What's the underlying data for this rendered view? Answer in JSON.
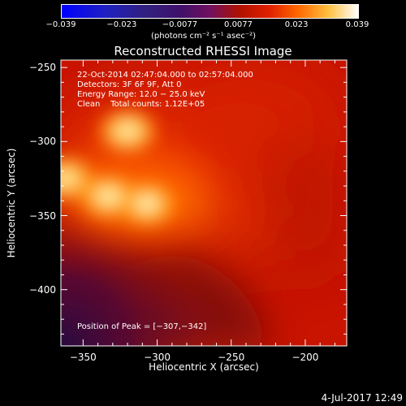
{
  "colorbar": {
    "ticks": [
      "−0.039",
      "−0.023",
      "−0.0077",
      "0.0077",
      "0.023",
      "0.039"
    ],
    "tick_values": [
      -0.039,
      -0.023,
      -0.0077,
      0.0077,
      0.023,
      0.039
    ],
    "range": [
      -0.039,
      0.039
    ],
    "label": "(photons cm⁻² s⁻¹ asec⁻²)"
  },
  "chart_data": {
    "type": "heatmap",
    "title": "Reconstructed RHESSI Image",
    "xlabel": "Heliocentric X (arcsec)",
    "ylabel": "Heliocentric Y (arcsec)",
    "xlim": [
      -365,
      -172
    ],
    "ylim": [
      -438,
      -245
    ],
    "x_ticks": [
      "−350",
      "−300",
      "−250",
      "−200"
    ],
    "x_tick_values": [
      -350,
      -300,
      -250,
      -200
    ],
    "y_ticks": [
      "−250",
      "−300",
      "−350",
      "−400"
    ],
    "y_tick_values": [
      -250,
      -300,
      -350,
      -400
    ],
    "annotations": {
      "time_range": "22-Oct-2014 02:47:04.000 to 02:57:04.000",
      "detectors": "Detectors: 3F 6F 9F, Att 0",
      "energy": "Energy Range: 12.0 − 25.0 keV",
      "method": "Clean    Total counts: 1.12E+05",
      "peak": "Position of Peak = [−307,−342]"
    },
    "peak": [
      -307,
      -342
    ],
    "sources": [
      {
        "x": -307,
        "y": -342,
        "intensity": 1.0
      },
      {
        "x": -333,
        "y": -337,
        "intensity": 0.95
      },
      {
        "x": -320,
        "y": -293,
        "intensity": 0.8
      },
      {
        "x": -362,
        "y": -325,
        "intensity": 0.7
      }
    ]
  },
  "footer": {
    "date": "4-Jul-2017 12:49"
  }
}
